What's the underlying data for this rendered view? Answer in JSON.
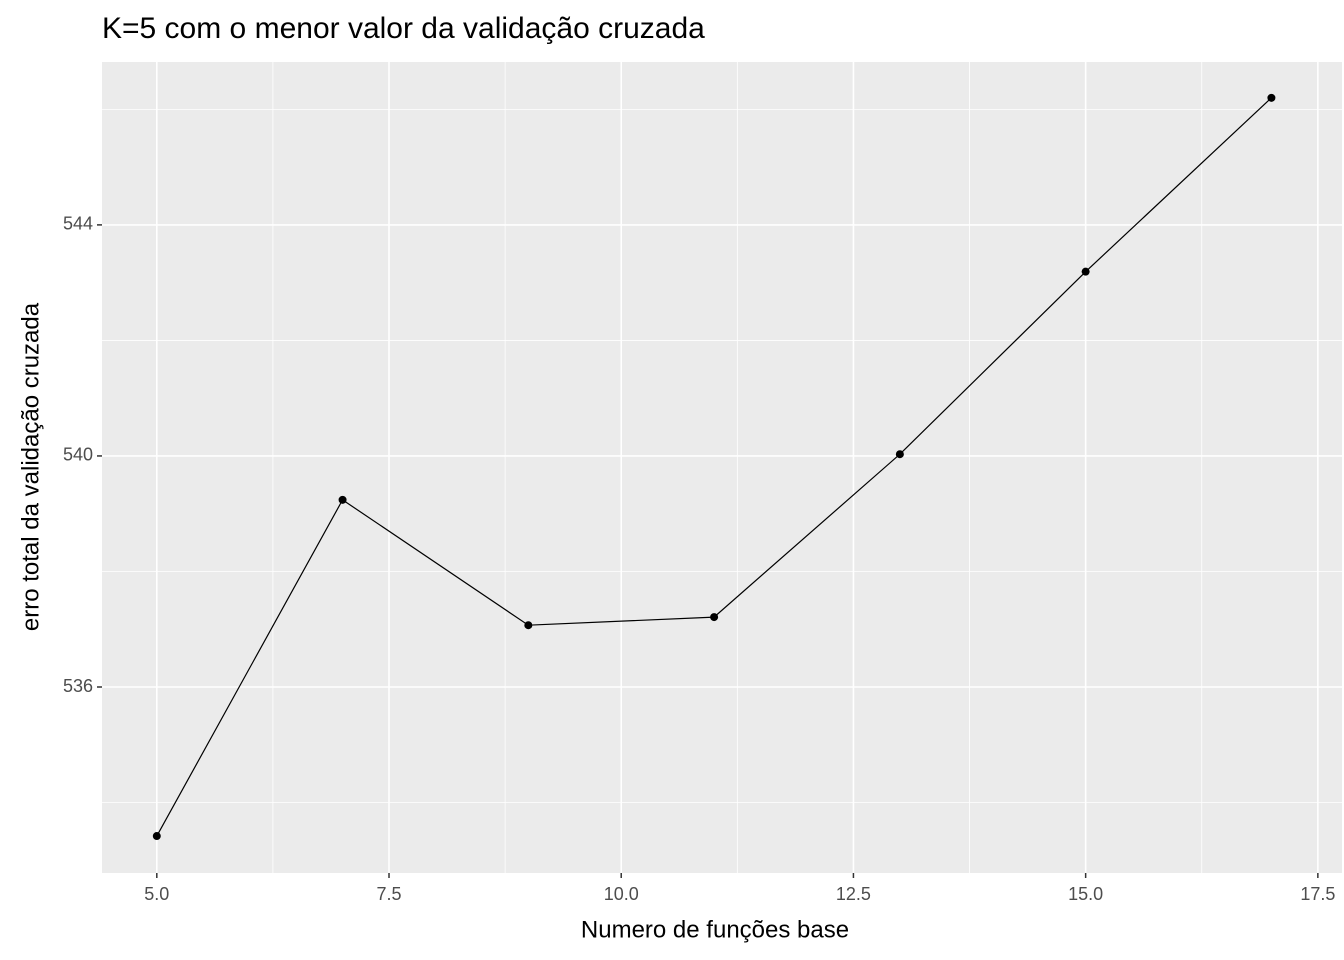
{
  "chart_data": {
    "type": "line",
    "title": "K=5 com o menor valor da validação cruzada",
    "x_label": "Numero de funções base",
    "y_label": "erro total da validação cruzada",
    "x": [
      5,
      7,
      9,
      11,
      13,
      15,
      17
    ],
    "series": [
      {
        "name": "erro",
        "color": "#000000",
        "values": [
          533.42,
          539.24,
          537.07,
          537.21,
          540.03,
          543.19,
          546.2
        ]
      }
    ],
    "xlim": [
      4.41,
      17.76
    ],
    "ylim": [
      532.78,
      546.82
    ],
    "xticks": [
      {
        "value": 5,
        "label": "5.0"
      },
      {
        "value": 7.5,
        "label": "7.5"
      },
      {
        "value": 10,
        "label": "10.0"
      },
      {
        "value": 12.5,
        "label": "12.5"
      },
      {
        "value": 15,
        "label": "15.0"
      },
      {
        "value": 17.5,
        "label": "17.5"
      }
    ],
    "yticks": [
      536,
      540,
      544
    ],
    "grid": true
  }
}
